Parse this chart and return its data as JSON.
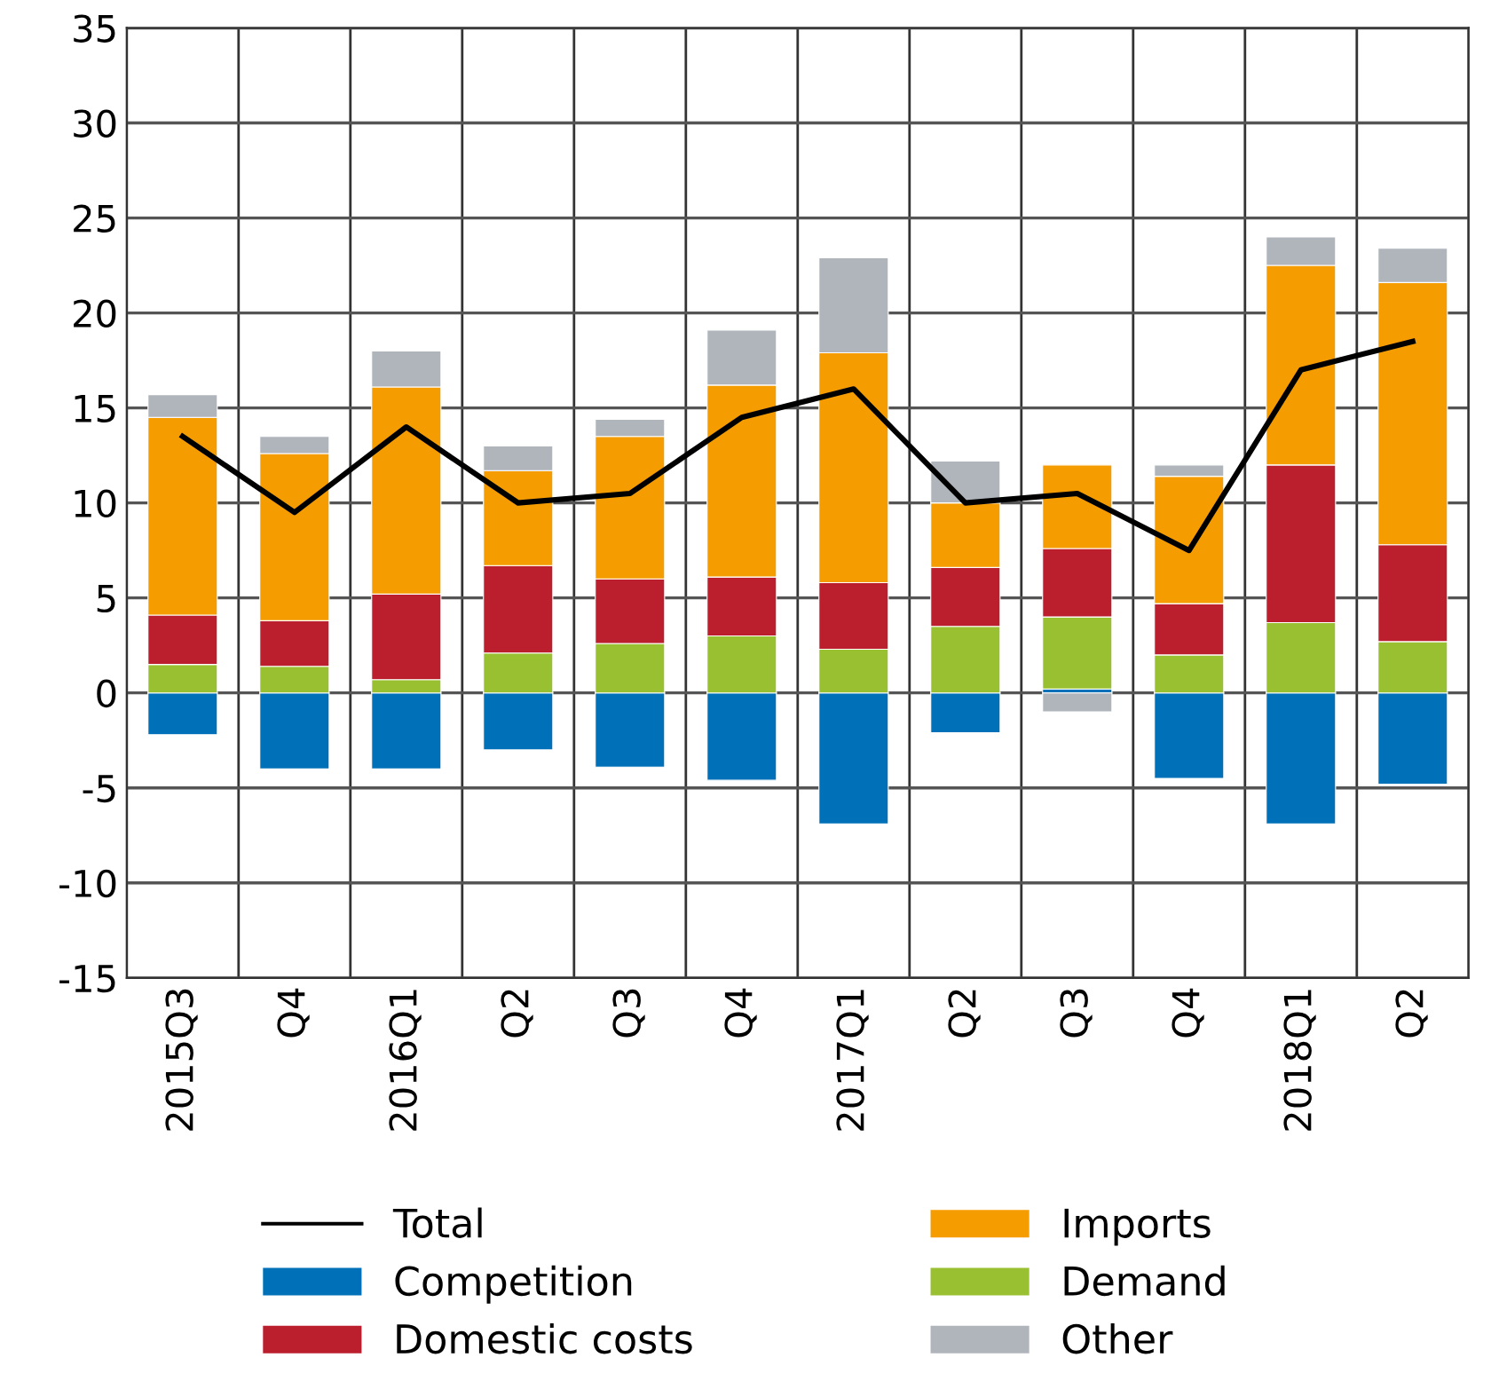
{
  "chart_data": {
    "type": "bar",
    "stacked": true,
    "categories": [
      "2015Q3",
      "Q4",
      "2016Q1",
      "Q2",
      "Q3",
      "Q4",
      "2017Q1",
      "Q2",
      "Q3",
      "Q4",
      "2018Q1",
      "Q2"
    ],
    "series": [
      {
        "name": "Total",
        "type": "line",
        "color": "#000000",
        "values": [
          13.5,
          9.5,
          14,
          10,
          10.5,
          14.5,
          16,
          10,
          10.5,
          7.5,
          17,
          18.5
        ]
      },
      {
        "name": "Competition",
        "color": "#0070b8",
        "values": [
          -2.2,
          -4.0,
          -4.0,
          -3.0,
          -3.9,
          -4.6,
          -6.9,
          -2.1,
          0.2,
          -4.5,
          -6.9,
          -4.8
        ]
      },
      {
        "name": "Demand",
        "color": "#99c031",
        "values": [
          1.5,
          1.4,
          0.7,
          2.1,
          2.6,
          3.0,
          2.3,
          3.5,
          3.8,
          2.0,
          3.7,
          2.7
        ]
      },
      {
        "name": "Domestic costs",
        "color": "#bb1f2e",
        "values": [
          2.6,
          2.4,
          4.5,
          4.6,
          3.4,
          3.1,
          3.5,
          3.1,
          3.6,
          2.7,
          8.3,
          5.1
        ]
      },
      {
        "name": "Imports",
        "color": "#f59c00",
        "values": [
          10.4,
          8.8,
          10.9,
          5.0,
          7.5,
          10.1,
          12.1,
          3.4,
          4.4,
          6.7,
          10.5,
          13.8
        ]
      },
      {
        "name": "Other",
        "color": "#b0b5bc",
        "values": [
          1.2,
          0.9,
          1.9,
          1.3,
          0.9,
          2.9,
          5.0,
          2.2,
          -1.0,
          0.6,
          1.5,
          1.8
        ]
      }
    ],
    "ylim": [
      -15,
      35
    ],
    "yticks": [
      -15,
      -10,
      -5,
      0,
      5,
      10,
      15,
      20,
      25,
      30,
      35
    ],
    "grid": true,
    "legend": "bottom",
    "marker": "none",
    "line_style": "solid"
  }
}
